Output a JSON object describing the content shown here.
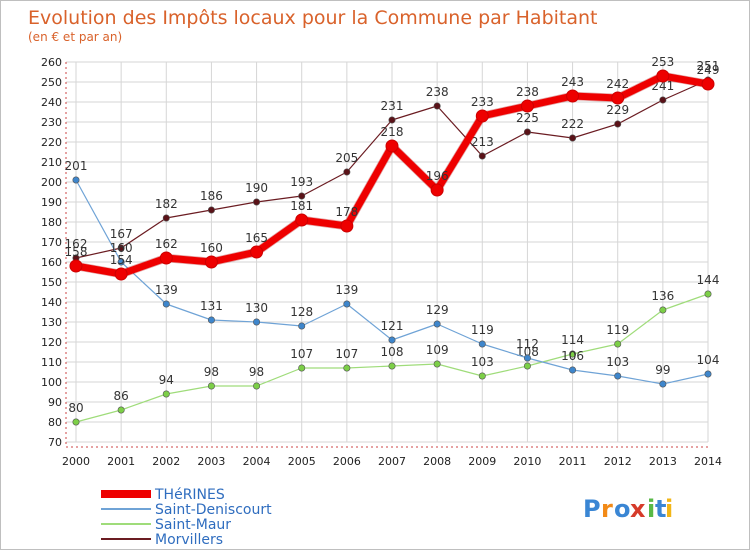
{
  "chart_data": {
    "type": "line",
    "title": "Evolution des Impôts locaux pour la Commune par Habitant",
    "subtitle": "(en € et par an)",
    "xlabel": "",
    "ylabel": "",
    "ylim": [
      70,
      260
    ],
    "yticks": [
      70,
      80,
      90,
      100,
      110,
      120,
      130,
      140,
      150,
      160,
      170,
      180,
      190,
      200,
      210,
      220,
      230,
      240,
      250,
      260
    ],
    "grid": true,
    "legend_position": "bottom-left",
    "x": [
      "2000",
      "2001",
      "2002",
      "2003",
      "2004",
      "2005",
      "2006",
      "2007",
      "2008",
      "2009",
      "2010",
      "2011",
      "2012",
      "2013",
      "2014"
    ],
    "series": [
      {
        "name": "Morvillers",
        "color": "#6b1c22",
        "marker_color": "#5a1218",
        "width": 1.2,
        "labels": [
          "162",
          "167",
          "182",
          "186",
          "190",
          "193",
          "205",
          "231",
          "238",
          "213",
          "225",
          "222",
          "229",
          "241",
          "251"
        ],
        "values": [
          162,
          167,
          182,
          186,
          190,
          193,
          205,
          231,
          238,
          213,
          225,
          222,
          229,
          241,
          251
        ]
      },
      {
        "name": "Saint-Maur",
        "color": "#9fdc7a",
        "marker_color": "#7ccf47",
        "width": 1.2,
        "labels": [
          "80",
          "86",
          "94",
          "98",
          "98",
          "107",
          "107",
          "108",
          "109",
          "103",
          "108",
          "114",
          "119",
          "136",
          "144"
        ],
        "values": [
          80,
          86,
          94,
          98,
          98,
          107,
          107,
          108,
          109,
          103,
          108,
          114,
          119,
          136,
          144
        ]
      },
      {
        "name": "Saint-Deniscourt",
        "color": "#6fa3d6",
        "marker_color": "#3e86cc",
        "width": 1.2,
        "labels": [
          "201",
          "160",
          "139",
          "131",
          "130",
          "128",
          "139",
          "121",
          "129",
          "119",
          "112",
          "106",
          "103",
          "99",
          "104"
        ],
        "values": [
          201,
          160,
          139,
          131,
          130,
          128,
          139,
          121,
          129,
          119,
          112,
          106,
          103,
          99,
          104
        ]
      },
      {
        "name": "THéRINES",
        "color": "#ee0000",
        "marker_color": "#ee0000",
        "width": 7,
        "labels": [
          "158",
          "154",
          "162",
          "160",
          "165",
          "181",
          "178",
          "218",
          "196",
          "233",
          "238",
          "243",
          "242",
          "253",
          "249"
        ],
        "values": [
          158,
          154,
          162,
          160,
          165,
          181,
          178,
          218,
          196,
          233,
          238,
          243,
          242,
          253,
          249
        ]
      }
    ],
    "legend_order": [
      "THéRINES",
      "Saint-Deniscourt",
      "Saint-Maur",
      "Morvillers"
    ]
  },
  "branding": {
    "letters": [
      "P",
      "r",
      "o",
      "x",
      "i",
      "t",
      "i"
    ],
    "letter_colors": [
      "#3a86d4",
      "#f28a17",
      "#3a86d4",
      "#d63b2a",
      "#58b947",
      "#3a86d4",
      "#f2b617"
    ]
  },
  "colors": {
    "title": "#d9622b",
    "subtitle": "#d9622b",
    "grid": "#d6d6d6",
    "axis": "#555555",
    "legend_text": "#2f6dbf",
    "tick": "#222222",
    "label": "#333333"
  }
}
